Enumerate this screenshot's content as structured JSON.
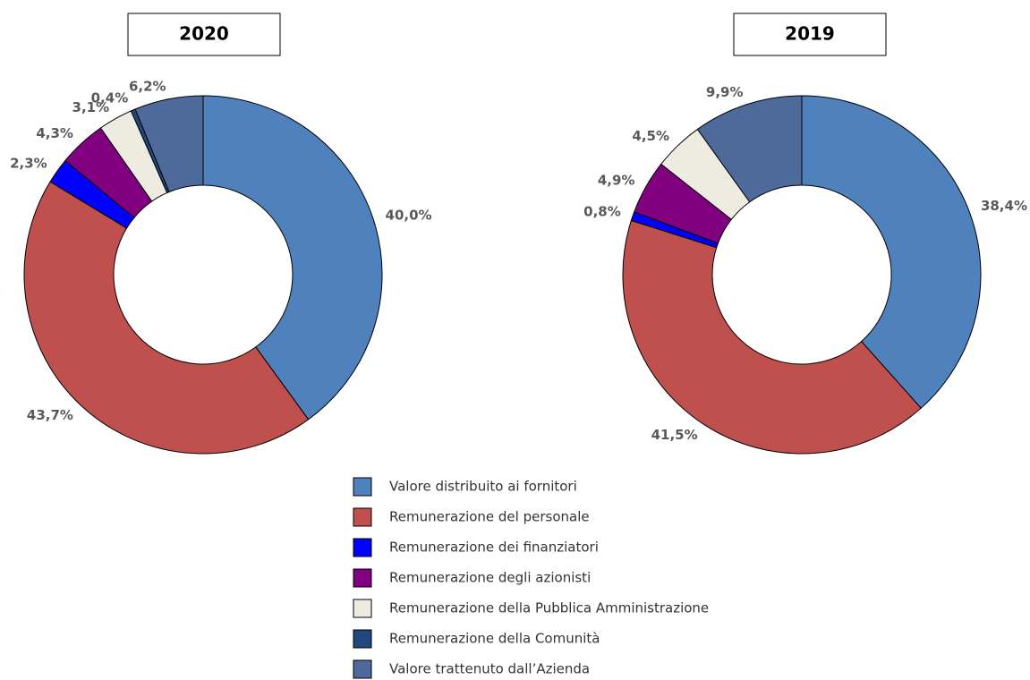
{
  "chart_data": [
    {
      "type": "donut",
      "title": "2020",
      "categories": [
        "Valore distribuito ai fornitori",
        "Remunerazione del personale",
        "Remunerazione dei finanziatori",
        "Remunerazione degli azionisti",
        "Remunerazione della Pubblica Amministrazione",
        "Remunerazione della Comunità",
        "Valore trattenuto dall’Azienda"
      ],
      "colors": [
        "#4f81bd",
        "#c0504d",
        "#0000ff",
        "#800080",
        "#eeece1",
        "#1f497d",
        "#4e6a9a"
      ],
      "values": [
        40.0,
        43.7,
        2.3,
        4.3,
        3.1,
        0.4,
        6.2
      ],
      "value_labels": [
        "40,0%",
        "43,7%",
        "2,3%",
        "4,3%",
        "3,1%",
        "0,4%",
        "6,2%"
      ]
    },
    {
      "type": "donut",
      "title": "2019",
      "values": [
        38.4,
        41.5,
        0.8,
        4.9,
        4.5,
        null,
        9.9
      ],
      "value_labels": [
        "38,4%",
        "41,5%",
        "0,8%",
        "4,9%",
        "4,5%",
        null,
        "9,9%"
      ]
    }
  ]
}
